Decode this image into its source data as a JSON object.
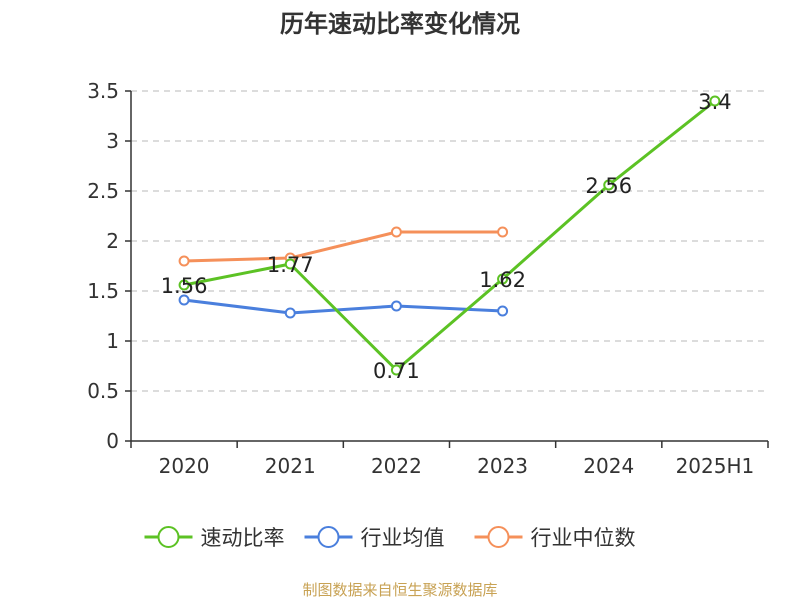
{
  "chart_data": {
    "type": "line",
    "title": "历年速动比率变化情况",
    "categories": [
      "2020",
      "2021",
      "2022",
      "2023",
      "2024",
      "2025H1"
    ],
    "ylim": [
      0,
      3.5
    ],
    "yticks": [
      "0",
      "0.5",
      "1",
      "1.5",
      "2",
      "2.5",
      "3",
      "3.5"
    ],
    "grid": true,
    "legend_position": "bottom",
    "series": [
      {
        "name": "速动比率",
        "color": "#5cc224",
        "values": [
          1.56,
          1.77,
          0.71,
          1.62,
          2.56,
          3.4
        ],
        "labels": [
          "1.56",
          "1.77",
          "0.71",
          "1.62",
          "2.56",
          "3.4"
        ],
        "show_labels": true
      },
      {
        "name": "行业均值",
        "color": "#4a7fdd",
        "values": [
          1.41,
          1.28,
          1.35,
          1.3,
          null,
          null
        ],
        "show_labels": false
      },
      {
        "name": "行业中位数",
        "color": "#f5905a",
        "values": [
          1.8,
          1.83,
          2.09,
          2.09,
          null,
          null
        ],
        "show_labels": false
      }
    ]
  },
  "footer": {
    "source": "制图数据来自恒生聚源数据库"
  }
}
